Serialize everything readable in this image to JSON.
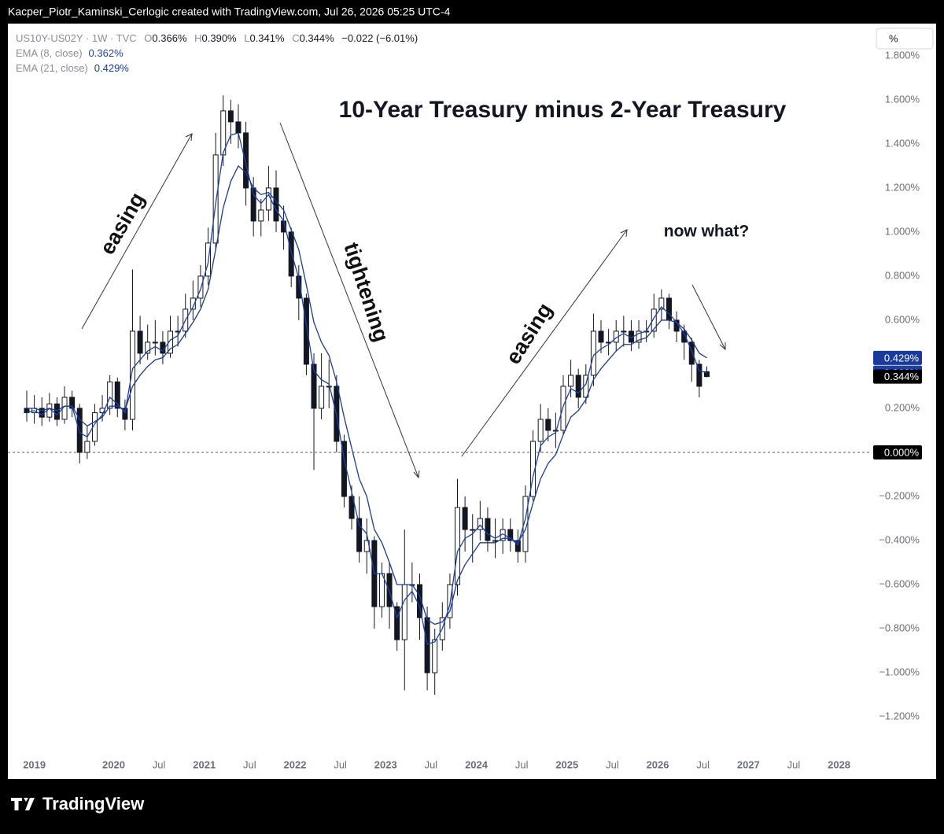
{
  "header": "Kacper_Piotr_Kaminski_Cerlogic created with TradingView.com, Jul 26, 2026 05:25 UTC-4",
  "footer": "TradingView",
  "scale_button": "%",
  "chart_data": {
    "type": "candlestick",
    "title": "10-Year Treasury minus 2-Year Treasury",
    "symbol": "US10Y-US02Y · 1W · TVC",
    "legend_ohlc": [
      {
        "key": "O",
        "label": "0.366%"
      },
      {
        "key": "H",
        "label": "0.390%"
      },
      {
        "key": "L",
        "label": "0.341%"
      },
      {
        "key": "C",
        "label": "0.344%"
      }
    ],
    "change_label": "−0.022 (−6.01%)",
    "close_label": "0.344%",
    "annotations": [
      "easing",
      "tightening",
      "easing",
      "now what?"
    ],
    "xlim": [
      "2018-11",
      "2028-05"
    ],
    "xticks": [
      {
        "value": "2019-01",
        "label": "2019"
      },
      {
        "value": "2020-01",
        "label": "2020"
      },
      {
        "value": "2020-07",
        "label": "Jul"
      },
      {
        "value": "2021-01",
        "label": "2021"
      },
      {
        "value": "2021-07",
        "label": "Jul"
      },
      {
        "value": "2022-01",
        "label": "2022"
      },
      {
        "value": "2022-07",
        "label": "Jul"
      },
      {
        "value": "2023-01",
        "label": "2023"
      },
      {
        "value": "2023-07",
        "label": "Jul"
      },
      {
        "value": "2024-01",
        "label": "2024"
      },
      {
        "value": "2024-07",
        "label": "Jul"
      },
      {
        "value": "2025-01",
        "label": "2025"
      },
      {
        "value": "2025-07",
        "label": "Jul"
      },
      {
        "value": "2026-01",
        "label": "2026"
      },
      {
        "value": "2026-07",
        "label": "Jul"
      },
      {
        "value": "2027-01",
        "label": "2027"
      },
      {
        "value": "2027-07",
        "label": "Jul"
      },
      {
        "value": "2028-01",
        "label": "2028"
      }
    ],
    "ylim": [
      -1.357,
      1.946
    ],
    "yticks": [
      {
        "value": 1.8,
        "label": "1.800%"
      },
      {
        "value": 1.6,
        "label": "1.600%"
      },
      {
        "value": 1.4,
        "label": "1.400%"
      },
      {
        "value": 1.2,
        "label": "1.200%"
      },
      {
        "value": 1.0,
        "label": "1.000%"
      },
      {
        "value": 0.8,
        "label": "0.800%"
      },
      {
        "value": 0.6,
        "label": "0.600%"
      },
      {
        "value": 0.2,
        "label": "0.200%"
      },
      {
        "value": -0.2,
        "label": "−0.200%"
      },
      {
        "value": -0.4,
        "label": "−0.400%"
      },
      {
        "value": -0.6,
        "label": "−0.600%"
      },
      {
        "value": -0.8,
        "label": "−0.800%"
      },
      {
        "value": -1.0,
        "label": "−1.000%"
      },
      {
        "value": -1.2,
        "label": "−1.200%"
      }
    ],
    "reference_line": {
      "value": 0,
      "label": "0.000%"
    },
    "grid": false,
    "up_color": "#ffffff",
    "down_color": "#131722",
    "outline_color": "#131722",
    "x": [
      "2019-01",
      "2019-02",
      "2019-03",
      "2019-04",
      "2019-05",
      "2019-06",
      "2019-07",
      "2019-08",
      "2019-09",
      "2019-10",
      "2019-11",
      "2019-12",
      "2020-01",
      "2020-02",
      "2020-03",
      "2020-04",
      "2020-05",
      "2020-06",
      "2020-07",
      "2020-08",
      "2020-09",
      "2020-10",
      "2020-11",
      "2020-12",
      "2021-01",
      "2021-02",
      "2021-03",
      "2021-04",
      "2021-05",
      "2021-06",
      "2021-07",
      "2021-08",
      "2021-09",
      "2021-10",
      "2021-11",
      "2021-12",
      "2022-01",
      "2022-02",
      "2022-03",
      "2022-04",
      "2022-05",
      "2022-06",
      "2022-07",
      "2022-08",
      "2022-09",
      "2022-10",
      "2022-11",
      "2022-12",
      "2023-01",
      "2023-02",
      "2023-03",
      "2023-04",
      "2023-05",
      "2023-06",
      "2023-07",
      "2023-08",
      "2023-09",
      "2023-10",
      "2023-11",
      "2023-12",
      "2024-01",
      "2024-02",
      "2024-03",
      "2024-04",
      "2024-05",
      "2024-06",
      "2024-07",
      "2024-08",
      "2024-09",
      "2024-10",
      "2024-11",
      "2024-12",
      "2025-01",
      "2025-02",
      "2025-03",
      "2025-04",
      "2025-05",
      "2025-06",
      "2025-07",
      "2025-08",
      "2025-09",
      "2025-10",
      "2025-11",
      "2025-12",
      "2026-01",
      "2026-02",
      "2026-03",
      "2026-04",
      "2026-05",
      "2026-06",
      "2026-07"
    ],
    "ohlc": [
      [
        0.2,
        0.28,
        0.14,
        0.18
      ],
      [
        0.18,
        0.26,
        0.13,
        0.2
      ],
      [
        0.2,
        0.25,
        0.12,
        0.16
      ],
      [
        0.16,
        0.27,
        0.14,
        0.22
      ],
      [
        0.22,
        0.25,
        0.12,
        0.15
      ],
      [
        0.15,
        0.3,
        0.13,
        0.25
      ],
      [
        0.25,
        0.28,
        0.16,
        0.2
      ],
      [
        0.2,
        0.22,
        -0.05,
        0.0
      ],
      [
        0.0,
        0.12,
        -0.03,
        0.05
      ],
      [
        0.05,
        0.22,
        0.03,
        0.18
      ],
      [
        0.18,
        0.26,
        0.14,
        0.2
      ],
      [
        0.2,
        0.35,
        0.17,
        0.32
      ],
      [
        0.32,
        0.34,
        0.16,
        0.2
      ],
      [
        0.2,
        0.24,
        0.1,
        0.15
      ],
      [
        0.15,
        0.83,
        0.1,
        0.55
      ],
      [
        0.55,
        0.62,
        0.4,
        0.45
      ],
      [
        0.45,
        0.58,
        0.42,
        0.5
      ],
      [
        0.5,
        0.6,
        0.44,
        0.5
      ],
      [
        0.5,
        0.55,
        0.4,
        0.45
      ],
      [
        0.45,
        0.62,
        0.43,
        0.55
      ],
      [
        0.55,
        0.62,
        0.48,
        0.55
      ],
      [
        0.55,
        0.72,
        0.52,
        0.65
      ],
      [
        0.65,
        0.78,
        0.6,
        0.7
      ],
      [
        0.7,
        0.85,
        0.66,
        0.8
      ],
      [
        0.8,
        1.02,
        0.76,
        0.95
      ],
      [
        0.95,
        1.45,
        0.92,
        1.35
      ],
      [
        1.35,
        1.62,
        1.3,
        1.55
      ],
      [
        1.55,
        1.6,
        1.4,
        1.5
      ],
      [
        1.5,
        1.58,
        1.38,
        1.45
      ],
      [
        1.45,
        1.5,
        1.12,
        1.2
      ],
      [
        1.2,
        1.25,
        0.98,
        1.05
      ],
      [
        1.05,
        1.15,
        0.98,
        1.1
      ],
      [
        1.1,
        1.3,
        1.05,
        1.2
      ],
      [
        1.2,
        1.28,
        1.0,
        1.05
      ],
      [
        1.05,
        1.12,
        0.92,
        1.0
      ],
      [
        1.0,
        1.02,
        0.75,
        0.8
      ],
      [
        0.8,
        0.85,
        0.6,
        0.7
      ],
      [
        0.7,
        0.72,
        0.35,
        0.4
      ],
      [
        0.4,
        0.45,
        -0.08,
        0.2
      ],
      [
        0.2,
        0.45,
        0.15,
        0.3
      ],
      [
        0.3,
        0.42,
        0.2,
        0.3
      ],
      [
        0.3,
        0.35,
        0.0,
        0.05
      ],
      [
        0.05,
        0.08,
        -0.25,
        -0.2
      ],
      [
        -0.2,
        -0.15,
        -0.35,
        -0.3
      ],
      [
        -0.3,
        -0.2,
        -0.5,
        -0.45
      ],
      [
        -0.45,
        -0.3,
        -0.55,
        -0.4
      ],
      [
        -0.4,
        -0.38,
        -0.8,
        -0.7
      ],
      [
        -0.7,
        -0.5,
        -0.75,
        -0.55
      ],
      [
        -0.55,
        -0.5,
        -0.8,
        -0.7
      ],
      [
        -0.7,
        -0.68,
        -0.9,
        -0.85
      ],
      [
        -0.85,
        -0.35,
        -1.08,
        -0.6
      ],
      [
        -0.6,
        -0.5,
        -0.68,
        -0.6
      ],
      [
        -0.6,
        -0.55,
        -0.85,
        -0.75
      ],
      [
        -0.75,
        -0.7,
        -1.08,
        -1.0
      ],
      [
        -1.0,
        -0.8,
        -1.1,
        -0.85
      ],
      [
        -0.85,
        -0.68,
        -0.9,
        -0.75
      ],
      [
        -0.75,
        -0.55,
        -0.8,
        -0.6
      ],
      [
        -0.6,
        -0.12,
        -0.65,
        -0.25
      ],
      [
        -0.25,
        -0.2,
        -0.45,
        -0.35
      ],
      [
        -0.35,
        -0.28,
        -0.5,
        -0.35
      ],
      [
        -0.35,
        -0.22,
        -0.4,
        -0.3
      ],
      [
        -0.3,
        -0.25,
        -0.45,
        -0.4
      ],
      [
        -0.4,
        -0.3,
        -0.48,
        -0.4
      ],
      [
        -0.4,
        -0.3,
        -0.46,
        -0.35
      ],
      [
        -0.35,
        -0.3,
        -0.45,
        -0.4
      ],
      [
        -0.4,
        -0.35,
        -0.5,
        -0.45
      ],
      [
        -0.45,
        -0.15,
        -0.5,
        -0.2
      ],
      [
        -0.2,
        0.1,
        -0.22,
        0.05
      ],
      [
        0.05,
        0.22,
        0.0,
        0.15
      ],
      [
        0.15,
        0.2,
        0.05,
        0.1
      ],
      [
        0.1,
        0.18,
        0.02,
        0.1
      ],
      [
        0.1,
        0.35,
        0.08,
        0.3
      ],
      [
        0.3,
        0.42,
        0.25,
        0.35
      ],
      [
        0.35,
        0.38,
        0.2,
        0.25
      ],
      [
        0.25,
        0.4,
        0.22,
        0.35
      ],
      [
        0.35,
        0.63,
        0.3,
        0.55
      ],
      [
        0.55,
        0.6,
        0.45,
        0.5
      ],
      [
        0.5,
        0.56,
        0.44,
        0.5
      ],
      [
        0.5,
        0.6,
        0.46,
        0.55
      ],
      [
        0.55,
        0.62,
        0.48,
        0.55
      ],
      [
        0.55,
        0.6,
        0.46,
        0.5
      ],
      [
        0.5,
        0.6,
        0.47,
        0.55
      ],
      [
        0.55,
        0.6,
        0.5,
        0.55
      ],
      [
        0.55,
        0.72,
        0.52,
        0.65
      ],
      [
        0.65,
        0.74,
        0.6,
        0.7
      ],
      [
        0.7,
        0.72,
        0.56,
        0.6
      ],
      [
        0.6,
        0.64,
        0.5,
        0.55
      ],
      [
        0.55,
        0.58,
        0.42,
        0.5
      ],
      [
        0.5,
        0.52,
        0.32,
        0.4
      ],
      [
        0.4,
        0.42,
        0.25,
        0.3
      ],
      [
        0.366,
        0.39,
        0.341,
        0.344
      ]
    ],
    "series": [
      {
        "name": "EMA (8, close)",
        "color": "#1c3fa8",
        "last_label": "0.362%",
        "values": [
          0.18,
          0.19,
          0.17,
          0.2,
          0.17,
          0.21,
          0.21,
          0.09,
          0.07,
          0.13,
          0.17,
          0.25,
          0.22,
          0.18,
          0.38,
          0.42,
          0.46,
          0.48,
          0.46,
          0.51,
          0.53,
          0.6,
          0.66,
          0.74,
          0.86,
          1.13,
          1.36,
          1.44,
          1.45,
          1.31,
          1.17,
          1.13,
          1.17,
          1.1,
          1.05,
          0.91,
          0.79,
          0.58,
          0.37,
          0.33,
          0.31,
          0.17,
          -0.03,
          -0.18,
          -0.33,
          -0.37,
          -0.55,
          -0.55,
          -0.63,
          -0.75,
          -0.67,
          -0.63,
          -0.7,
          -0.87,
          -0.86,
          -0.8,
          -0.69,
          -0.45,
          -0.39,
          -0.37,
          -0.33,
          -0.37,
          -0.39,
          -0.37,
          -0.39,
          -0.42,
          -0.3,
          -0.11,
          0.03,
          0.07,
          0.09,
          0.21,
          0.29,
          0.27,
          0.31,
          0.44,
          0.47,
          0.49,
          0.52,
          0.54,
          0.52,
          0.54,
          0.55,
          0.61,
          0.66,
          0.63,
          0.59,
          0.54,
          0.46,
          0.37,
          0.362
        ]
      },
      {
        "name": "EMA (21, close)",
        "color": "#1a3a9c",
        "last_label": "0.429%",
        "values": [
          0.2,
          0.2,
          0.19,
          0.2,
          0.19,
          0.21,
          0.21,
          0.15,
          0.12,
          0.14,
          0.16,
          0.21,
          0.21,
          0.19,
          0.3,
          0.35,
          0.39,
          0.42,
          0.43,
          0.47,
          0.49,
          0.54,
          0.59,
          0.65,
          0.74,
          0.92,
          1.11,
          1.23,
          1.3,
          1.27,
          1.2,
          1.17,
          1.18,
          1.14,
          1.1,
          1.01,
          0.92,
          0.76,
          0.59,
          0.5,
          0.44,
          0.32,
          0.16,
          0.02,
          -0.12,
          -0.2,
          -0.35,
          -0.41,
          -0.5,
          -0.6,
          -0.6,
          -0.6,
          -0.65,
          -0.76,
          -0.78,
          -0.77,
          -0.72,
          -0.58,
          -0.51,
          -0.46,
          -0.41,
          -0.41,
          -0.41,
          -0.39,
          -0.39,
          -0.41,
          -0.35,
          -0.23,
          -0.12,
          -0.05,
          -0.01,
          0.08,
          0.16,
          0.19,
          0.24,
          0.33,
          0.38,
          0.42,
          0.46,
          0.49,
          0.49,
          0.51,
          0.52,
          0.56,
          0.6,
          0.6,
          0.59,
          0.56,
          0.51,
          0.45,
          0.429
        ]
      }
    ]
  }
}
